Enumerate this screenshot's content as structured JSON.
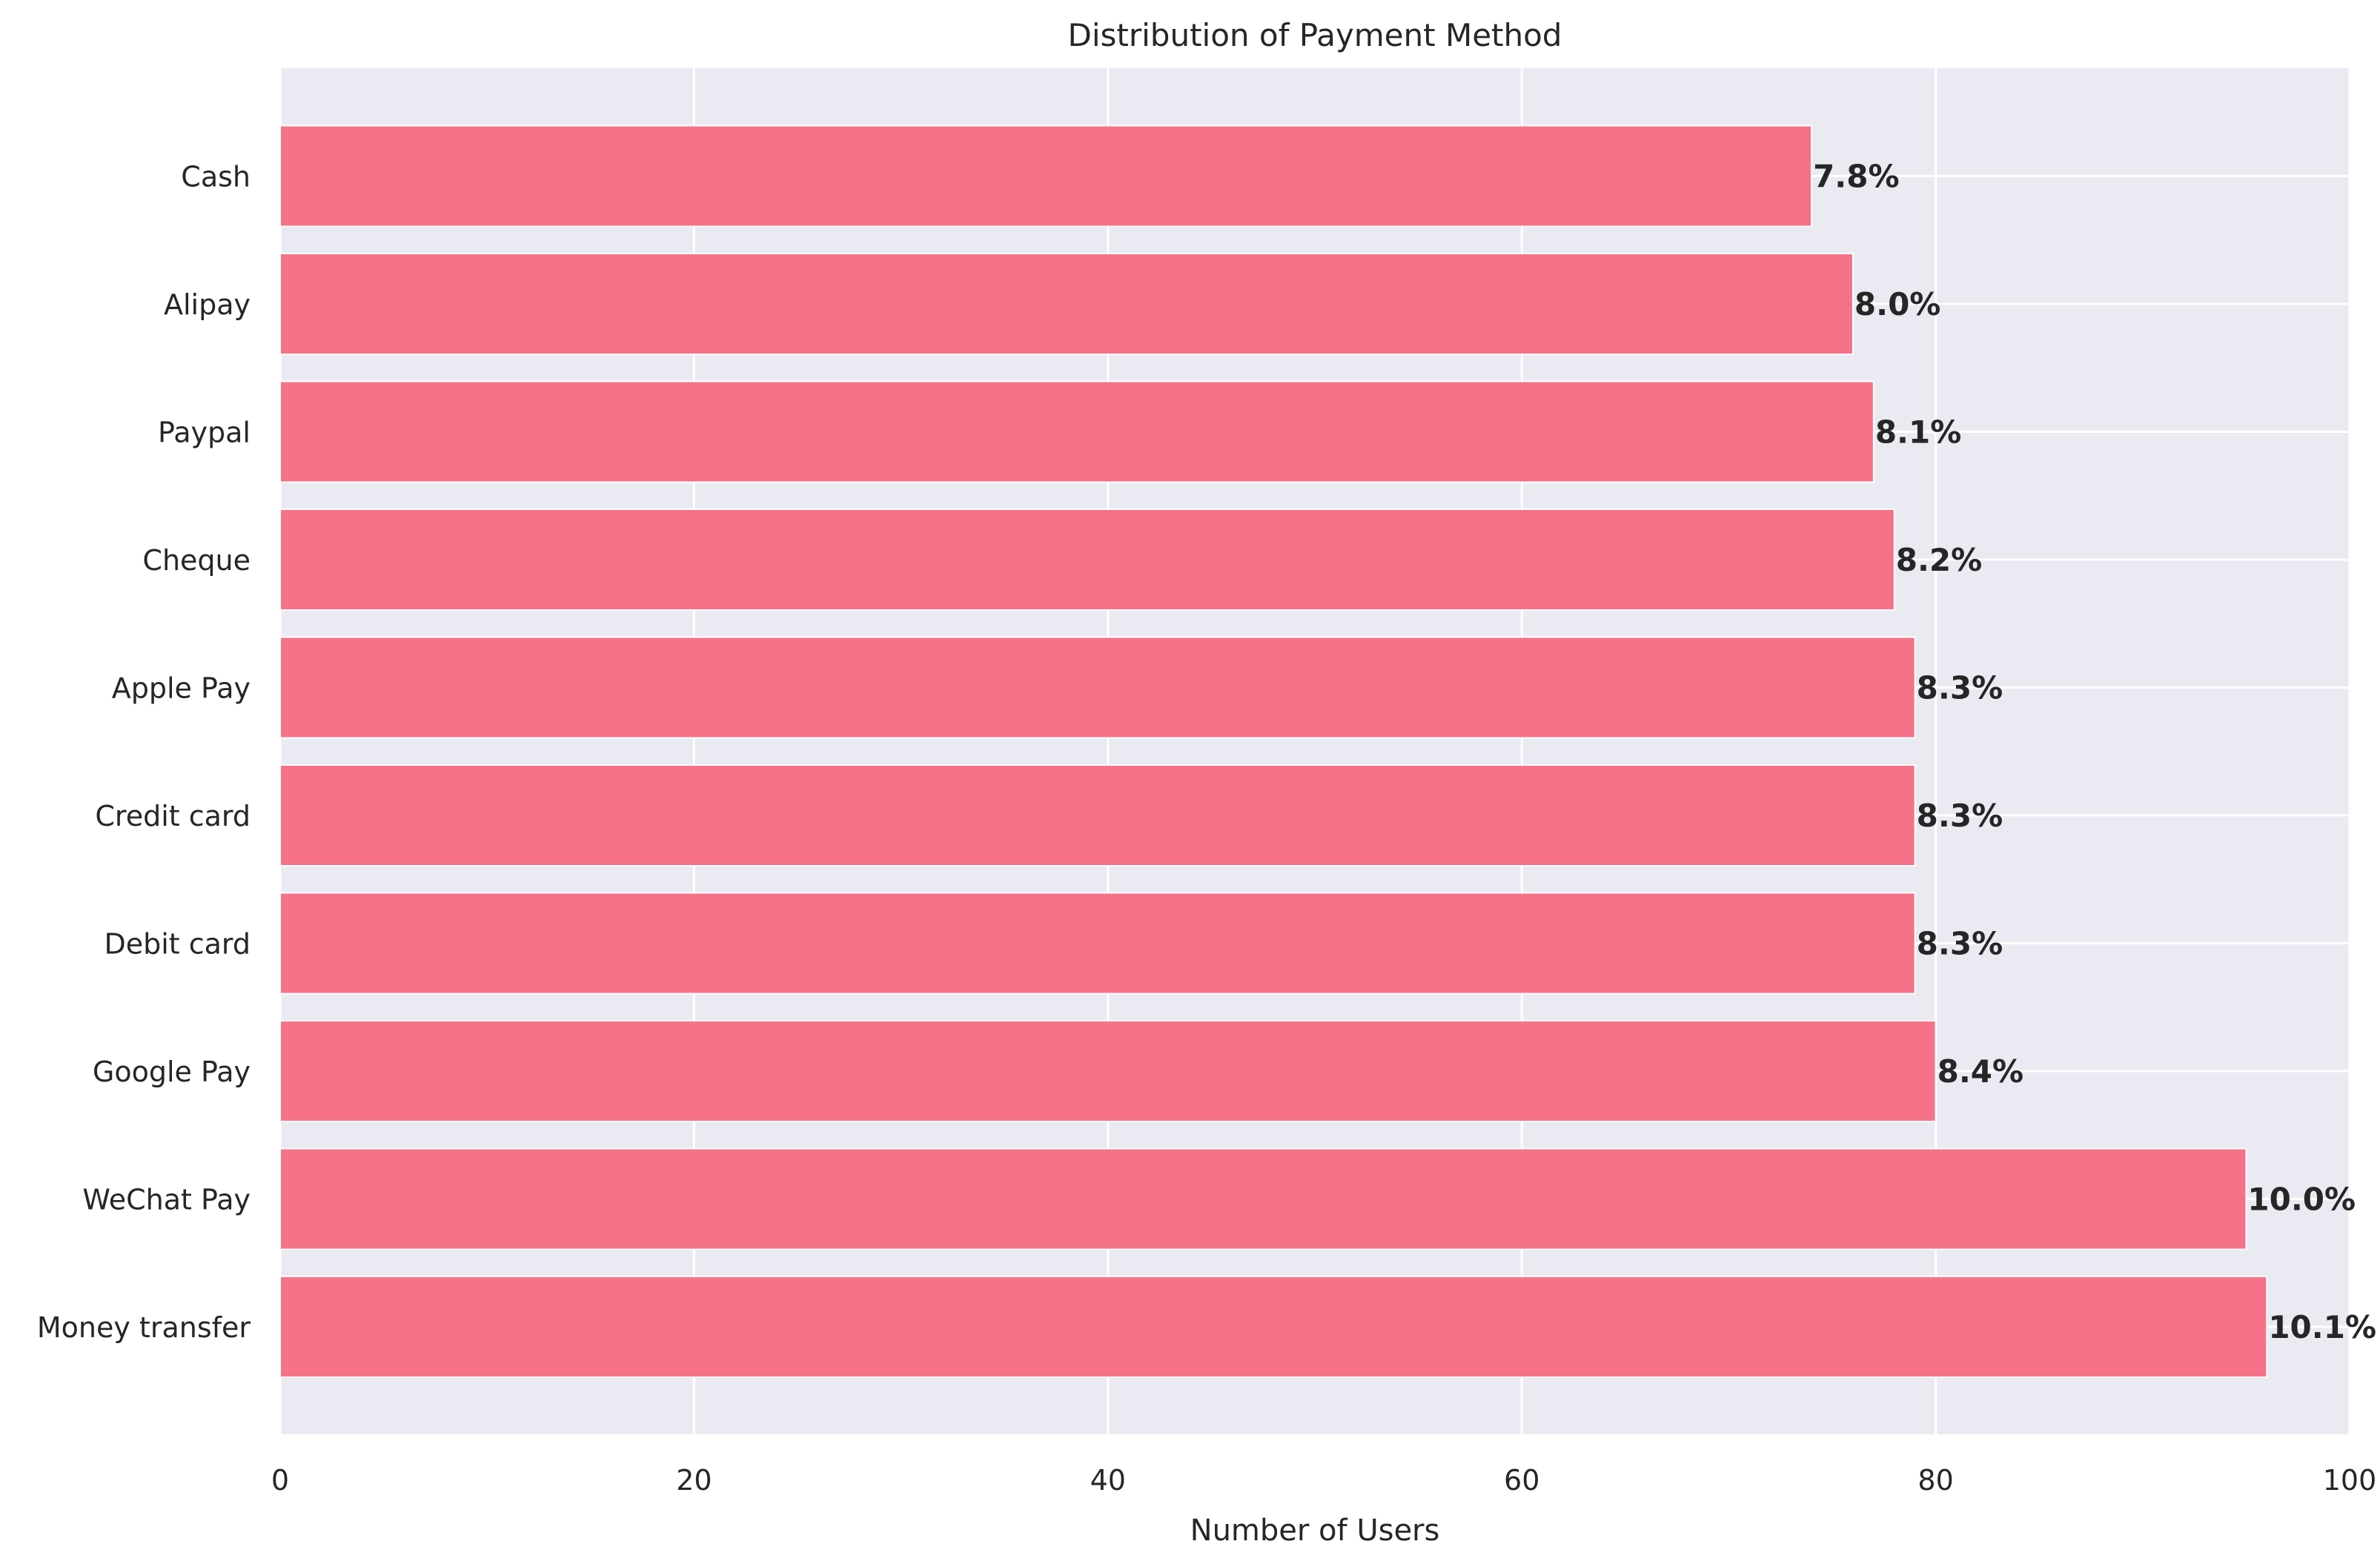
{
  "chart_data": {
    "type": "bar",
    "orientation": "horizontal",
    "title": "Distribution of Payment Method",
    "xlabel": "Number of Users",
    "ylabel": "",
    "xlim": [
      0,
      100
    ],
    "xticks": [
      0,
      20,
      40,
      60,
      80,
      100
    ],
    "grid": true,
    "categories": [
      "Money transfer",
      "WeChat Pay",
      "Google Pay",
      "Debit card",
      "Credit card",
      "Apple Pay",
      "Cheque",
      "Paypal",
      "Alipay",
      "Cash"
    ],
    "values": [
      96,
      95,
      80,
      79,
      79,
      79,
      78,
      77,
      76,
      74
    ],
    "data_labels": [
      "10.1%",
      "10.0%",
      "8.4%",
      "8.3%",
      "8.3%",
      "8.3%",
      "8.2%",
      "8.1%",
      "8.0%",
      "7.8%"
    ],
    "colors": {
      "bar": "#f57288",
      "plot_background": "#eaeaf2",
      "grid": "#ffffff",
      "text": "#262626"
    }
  }
}
